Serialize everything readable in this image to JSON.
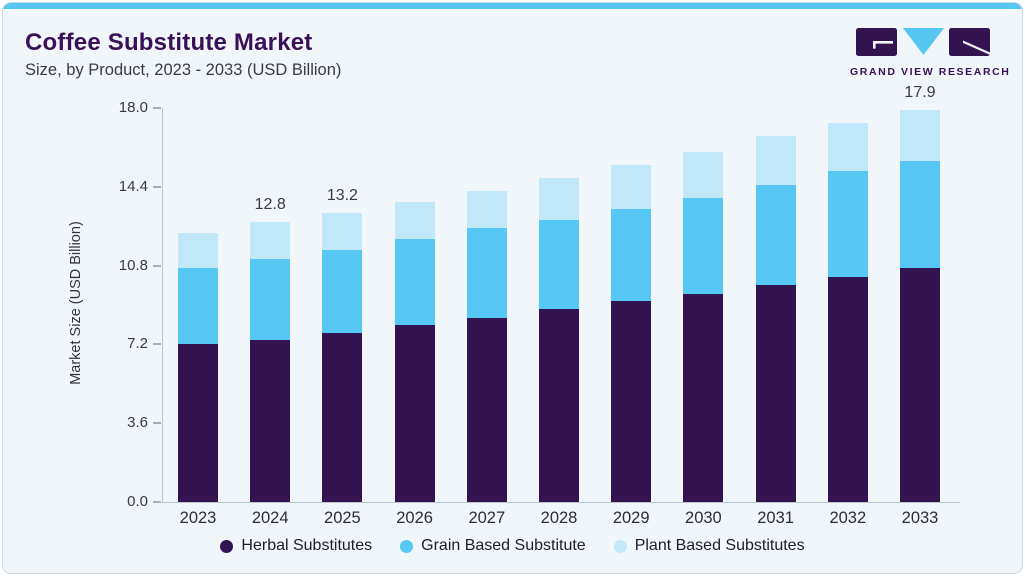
{
  "page": {
    "title": "Coffee Substitute Market",
    "subtitle": "Size, by Product, 2023 - 2033 (USD Billion)"
  },
  "brand": {
    "name": "GRAND VIEW RESEARCH"
  },
  "chart_data": {
    "type": "bar",
    "stacked": true,
    "title": "Coffee Substitute Market Size, by Product, 2023 - 2033 (USD Billion)",
    "xlabel": "",
    "ylabel": "Market Size (USD Billion)",
    "ylim": [
      0,
      18
    ],
    "grid": false,
    "legend_position": "bottom",
    "yticks": [
      {
        "value": 18,
        "label": "18.0"
      },
      {
        "value": 14.4,
        "label": "14.4"
      },
      {
        "value": 10.8,
        "label": "10.8"
      },
      {
        "value": 7.2,
        "label": "7.2"
      },
      {
        "value": 3.6,
        "label": "3.6"
      },
      {
        "value": 0,
        "label": "0.0"
      }
    ],
    "categories": [
      "2023",
      "2024",
      "2025",
      "2026",
      "2027",
      "2028",
      "2029",
      "2030",
      "2031",
      "2032",
      "2033"
    ],
    "series": [
      {
        "name": "Herbal Substitutes",
        "color": "#331450",
        "values": [
          7.2,
          7.4,
          7.7,
          8.1,
          8.4,
          8.8,
          9.2,
          9.5,
          9.9,
          10.3,
          10.7
        ]
      },
      {
        "name": "Grain Based Substitute",
        "color": "#56c8f3",
        "values": [
          3.5,
          3.7,
          3.8,
          3.9,
          4.1,
          4.1,
          4.2,
          4.4,
          4.6,
          4.8,
          4.9
        ]
      },
      {
        "name": "Plant Based Substitutes",
        "color": "#c0e8f9",
        "values": [
          1.6,
          1.7,
          1.7,
          1.7,
          1.7,
          1.9,
          2.0,
          2.1,
          2.2,
          2.2,
          2.3
        ]
      }
    ],
    "totals": [
      12.3,
      12.8,
      13.2,
      13.7,
      14.2,
      14.8,
      15.4,
      16.0,
      16.7,
      17.3,
      17.9
    ],
    "bar_labels": {
      "2024": "12.8",
      "2025": "13.2",
      "2033": "17.9"
    }
  },
  "colors": {
    "accent_bar": "#55c7f2",
    "card_background": "#f0f6fa",
    "title_text": "#3a1159",
    "herbal": "#331450",
    "grain": "#56c8f3",
    "plant": "#c0e8f9"
  }
}
